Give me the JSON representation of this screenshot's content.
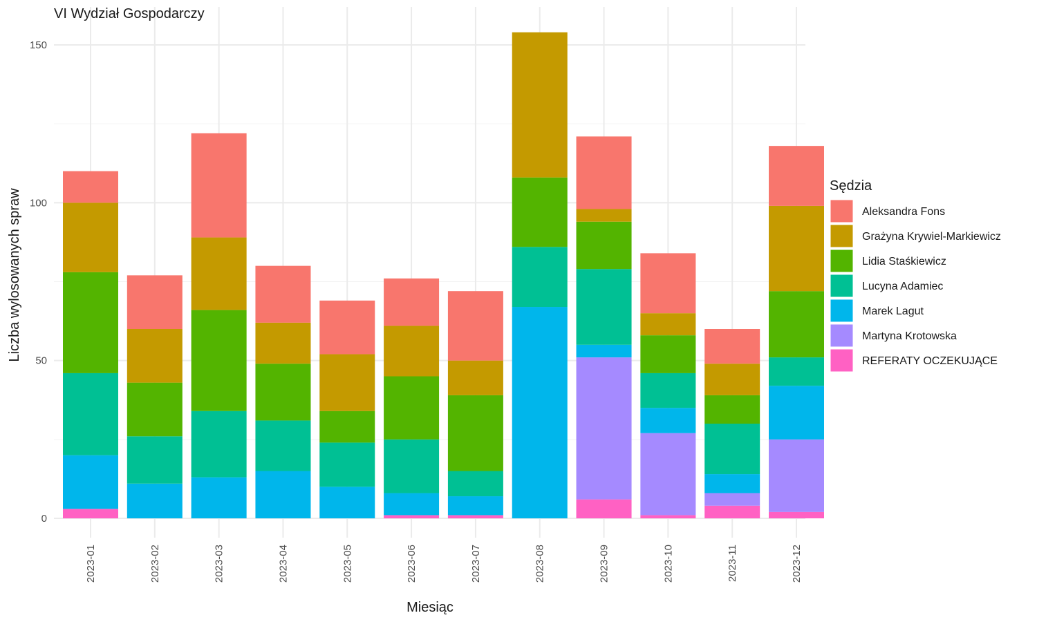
{
  "chart_data": {
    "type": "bar",
    "stacked": true,
    "title": "VI Wydział Gospodarczy",
    "xlabel": "Miesiąc",
    "ylabel": "Liczba wylosowanych spraw",
    "ylim": [
      -5,
      160
    ],
    "yticks": [
      0,
      50,
      100,
      150
    ],
    "grid": true,
    "legend": {
      "title": "Sędzia",
      "position": "right"
    },
    "categories": [
      "2023-01",
      "2023-02",
      "2023-03",
      "2023-04",
      "2023-05",
      "2023-06",
      "2023-07",
      "2023-08",
      "2023-09",
      "2023-10",
      "2023-11",
      "2023-12"
    ],
    "series": [
      {
        "name": "REFERATY OCZEKUJĄCE",
        "color": "#FF61C3",
        "values": [
          3,
          0,
          0,
          0,
          0,
          1,
          1,
          0,
          6,
          1,
          4,
          2
        ]
      },
      {
        "name": "Martyna Krotowska",
        "color": "#A58AFF",
        "values": [
          0,
          0,
          0,
          0,
          0,
          0,
          0,
          0,
          45,
          26,
          4,
          23
        ]
      },
      {
        "name": "Marek Lagut",
        "color": "#00B6EB",
        "values": [
          17,
          11,
          13,
          15,
          10,
          7,
          6,
          67,
          4,
          8,
          6,
          17
        ]
      },
      {
        "name": "Lucyna Adamiec",
        "color": "#00C094",
        "values": [
          26,
          15,
          21,
          16,
          14,
          17,
          8,
          19,
          24,
          11,
          16,
          9
        ]
      },
      {
        "name": "Lidia Staśkiewicz",
        "color": "#53B400",
        "values": [
          32,
          17,
          32,
          18,
          10,
          20,
          24,
          22,
          15,
          12,
          9,
          21
        ]
      },
      {
        "name": "Grażyna Krywiel-Markiewicz",
        "color": "#C49A00",
        "values": [
          22,
          17,
          23,
          13,
          18,
          16,
          11,
          46,
          4,
          7,
          10,
          27
        ]
      },
      {
        "name": "Aleksandra Fons",
        "color": "#F8766D",
        "values": [
          10,
          17,
          33,
          18,
          17,
          15,
          22,
          0,
          23,
          19,
          11,
          19
        ]
      }
    ],
    "legend_order": [
      "Aleksandra Fons",
      "Grażyna Krywiel-Markiewicz",
      "Lidia Staśkiewicz",
      "Lucyna Adamiec",
      "Marek Lagut",
      "Martyna Krotowska",
      "REFERATY OCZEKUJĄCE"
    ]
  }
}
